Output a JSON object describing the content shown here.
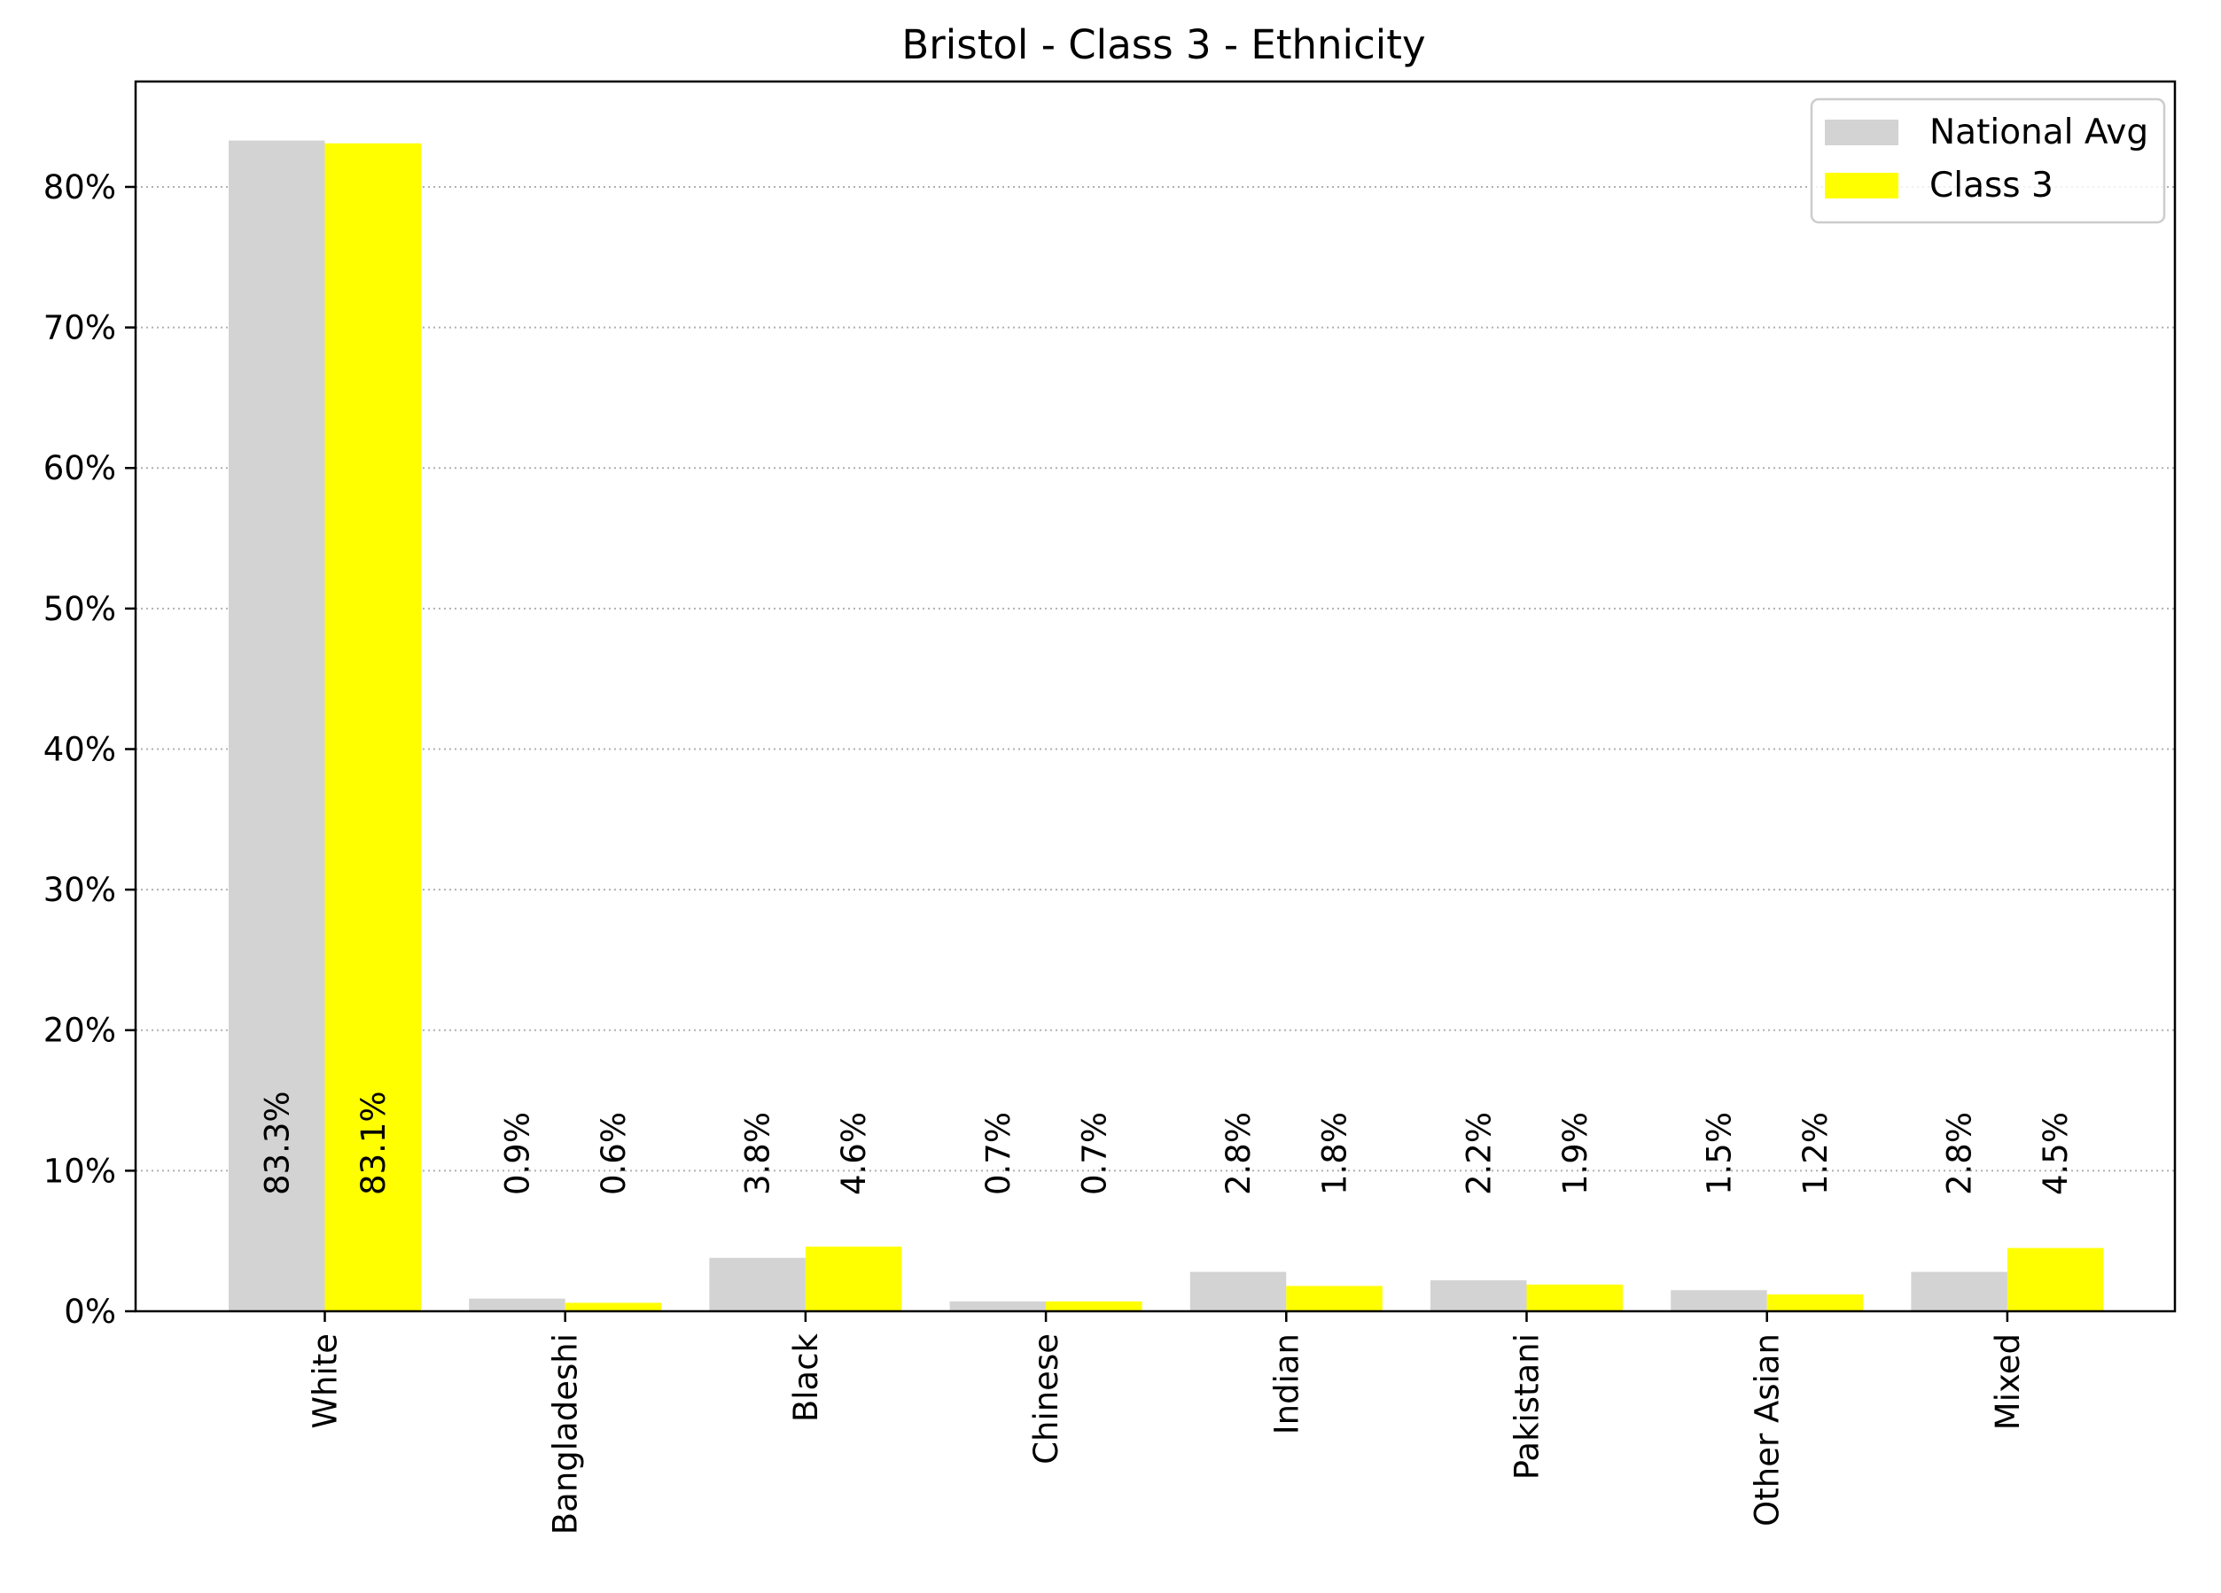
{
  "chart_data": {
    "type": "bar",
    "title": "Bristol - Class 3 - Ethnicity",
    "xlabel": "",
    "ylabel": "",
    "categories": [
      "White",
      "Bangladeshi",
      "Black",
      "Chinese",
      "Indian",
      "Pakistani",
      "Other Asian",
      "Mixed"
    ],
    "series": [
      {
        "name": "National Avg",
        "color": "#d3d3d3",
        "values": [
          83.3,
          0.9,
          3.8,
          0.7,
          2.8,
          2.2,
          1.5,
          2.8
        ],
        "labels": [
          "83.3%",
          "0.9%",
          "3.8%",
          "0.7%",
          "2.8%",
          "2.2%",
          "1.5%",
          "2.8%"
        ]
      },
      {
        "name": "Class 3",
        "color": "#ffff00",
        "values": [
          83.1,
          0.6,
          4.6,
          0.7,
          1.8,
          1.9,
          1.2,
          4.5
        ],
        "labels": [
          "83.1%",
          "0.6%",
          "4.6%",
          "0.7%",
          "1.8%",
          "1.9%",
          "1.2%",
          "4.5%"
        ]
      }
    ],
    "ylim": [
      0,
      87.5
    ],
    "yticks": [
      0,
      10,
      20,
      30,
      40,
      50,
      60,
      70,
      80
    ],
    "ytick_labels": [
      "0%",
      "10%",
      "20%",
      "30%",
      "40%",
      "50%",
      "60%",
      "70%",
      "80%"
    ],
    "grid": "horizontal dotted",
    "legend_position": "top-right"
  }
}
